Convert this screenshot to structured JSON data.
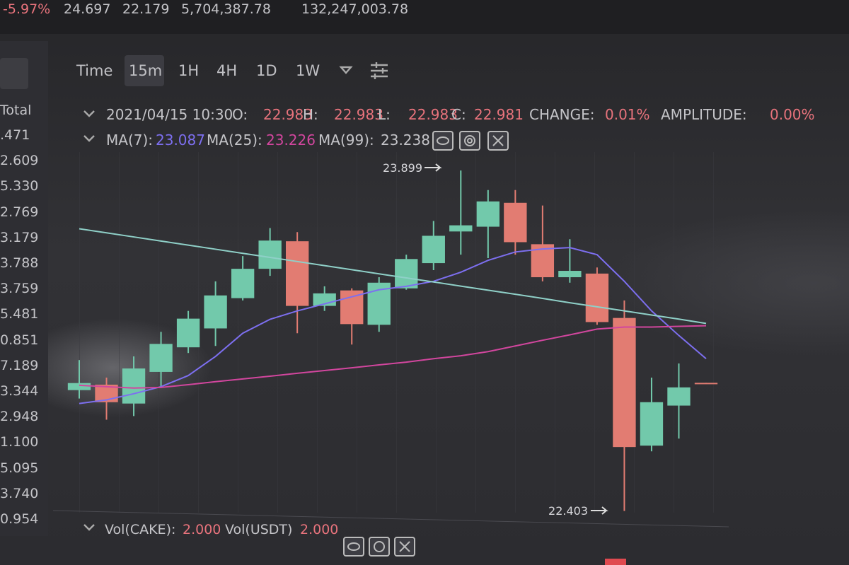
{
  "ticker": [
    "-5.97%",
    "24.697",
    "22.179",
    "5,704,387.78",
    "132,247,003.78"
  ],
  "sidebar": {
    "title": "Total",
    "rows": [
      ".471",
      "2.609",
      "5.330",
      "2.769",
      "3.179",
      "3.788",
      "3.759",
      "5.481",
      "0.851",
      "7.189",
      "3.344",
      "2.948",
      "1.100",
      "5.095",
      "3.740",
      "0.954"
    ]
  },
  "toolbar": [
    "Time",
    "15m",
    "1H",
    "4H",
    "1D",
    "1W"
  ],
  "ohlc_legend": [
    "2021/04/15 10:30",
    "O:",
    "22.983",
    "H:",
    "22.983",
    "L:",
    "22.983",
    "C:",
    "22.981",
    "CHANGE:",
    "0.01%",
    "AMPLITUDE:",
    "0.00%"
  ],
  "ma_legend": [
    "MA(7):",
    "23.087",
    "MA(25):",
    "23.226",
    "MA(99):",
    "23.238"
  ],
  "volume_legend": [
    "Vol(CAKE):",
    "2.000",
    "Vol(USDT)",
    "2.000"
  ],
  "chart_data": {
    "type": "candlestick",
    "categories": [
      null,
      null,
      null,
      null,
      null,
      null,
      null,
      null,
      null,
      null,
      null,
      null,
      null,
      null,
      null,
      null,
      null,
      null,
      null,
      null,
      null,
      null,
      null,
      null
    ],
    "open": [
      22.934,
      22.958,
      22.875,
      23.014,
      23.122,
      23.205,
      23.338,
      23.467,
      23.588,
      23.304,
      23.372,
      23.221,
      23.381,
      23.492,
      23.631,
      23.652,
      23.757,
      23.575,
      23.43,
      23.446,
      23.251,
      22.69,
      22.866,
      22.966
    ],
    "high": [
      23.066,
      22.989,
      23.082,
      23.19,
      23.282,
      23.412,
      23.523,
      23.646,
      23.628,
      23.39,
      23.381,
      23.43,
      23.529,
      23.677,
      23.899,
      23.813,
      23.813,
      23.745,
      23.597,
      23.473,
      23.328,
      22.989,
      23.051,
      22.966
    ],
    "low": [
      22.897,
      22.804,
      22.82,
      22.943,
      23.097,
      23.128,
      23.328,
      23.436,
      23.184,
      23.282,
      23.134,
      23.19,
      23.375,
      23.461,
      23.529,
      23.514,
      23.529,
      23.412,
      23.406,
      23.221,
      22.403,
      22.665,
      22.721,
      22.965
    ],
    "close": [
      22.965,
      22.881,
      23.029,
      23.137,
      23.248,
      23.35,
      23.467,
      23.591,
      23.304,
      23.359,
      23.224,
      23.406,
      23.51,
      23.612,
      23.658,
      23.763,
      23.584,
      23.43,
      23.458,
      23.233,
      22.684,
      22.881,
      22.946,
      22.965
    ],
    "up_color": "#72c9ab",
    "down_color": "#e27c72",
    "lines": [
      {
        "color": "#7d6ff0",
        "values": [
          22.875,
          22.891,
          22.918,
          22.949,
          22.998,
          23.082,
          23.184,
          23.245,
          23.282,
          23.313,
          23.344,
          23.375,
          23.39,
          23.412,
          23.452,
          23.504,
          23.541,
          23.554,
          23.56,
          23.529,
          23.412,
          23.282,
          23.174,
          23.072
        ]
      },
      {
        "color": "#d2469e",
        "values": [
          22.955,
          22.949,
          22.943,
          22.946,
          22.958,
          22.971,
          22.983,
          22.995,
          23.008,
          23.02,
          23.032,
          23.045,
          23.057,
          23.072,
          23.085,
          23.103,
          23.128,
          23.153,
          23.177,
          23.202,
          23.211,
          23.211,
          23.214,
          23.217
        ]
      },
      {
        "color": "#8fd0c8",
        "values": [
          23.643,
          23.625,
          23.607,
          23.589,
          23.571,
          23.553,
          23.535,
          23.517,
          23.499,
          23.481,
          23.463,
          23.445,
          23.427,
          23.409,
          23.391,
          23.373,
          23.355,
          23.337,
          23.318,
          23.3,
          23.282,
          23.264,
          23.246,
          23.227
        ]
      }
    ],
    "ylim": [
      22.38,
      23.98
    ]
  }
}
